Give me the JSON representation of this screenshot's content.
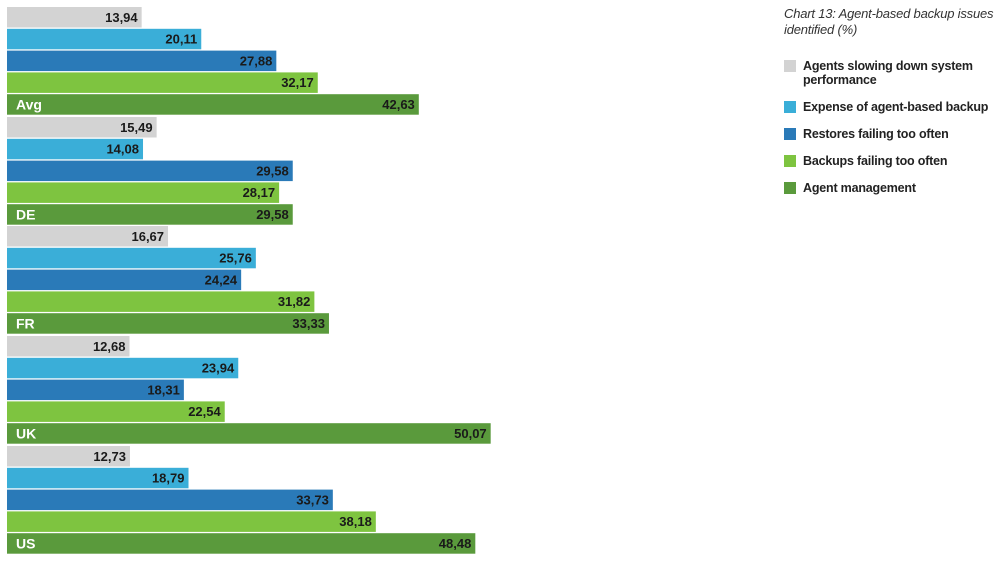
{
  "chart_data": {
    "type": "bar",
    "orientation": "horizontal",
    "title": "Chart 13: Agent-based backup issues identified (%)",
    "categories": [
      "Avg",
      "DE",
      "FR",
      "UK",
      "US"
    ],
    "series": [
      {
        "name": "Agents slowing down system performance",
        "color": "#d3d3d3",
        "values": [
          13.94,
          15.49,
          16.67,
          12.68,
          12.73
        ],
        "labels": [
          "13,94",
          "15,49",
          "16,67",
          "12,68",
          "12,73"
        ]
      },
      {
        "name": "Expense of agent-based backup",
        "color": "#3aaed8",
        "values": [
          20.11,
          14.08,
          25.76,
          23.94,
          18.79
        ],
        "labels": [
          "20,11",
          "14,08",
          "25,76",
          "23,94",
          "18,79"
        ]
      },
      {
        "name": "Restores failing too often",
        "color": "#2a7ab8",
        "values": [
          27.88,
          29.58,
          24.24,
          18.31,
          33.73
        ],
        "labels": [
          "27,88",
          "29,58",
          "24,24",
          "18,31",
          "33,73"
        ]
      },
      {
        "name": "Backups failing too often",
        "color": "#7ec440",
        "values": [
          32.17,
          28.17,
          31.82,
          22.54,
          38.18
        ],
        "labels": [
          "32,17",
          "28,17",
          "31,82",
          "22,54",
          "38,18"
        ]
      },
      {
        "name": "Agent management",
        "color": "#5a9a3c",
        "values": [
          42.63,
          29.58,
          33.33,
          50.07,
          48.48
        ],
        "labels": [
          "42,63",
          "29,58",
          "33,33",
          "50,07",
          "48,48"
        ]
      }
    ],
    "xlim": [
      0,
      100
    ],
    "grid": false,
    "legend_position": "right"
  }
}
